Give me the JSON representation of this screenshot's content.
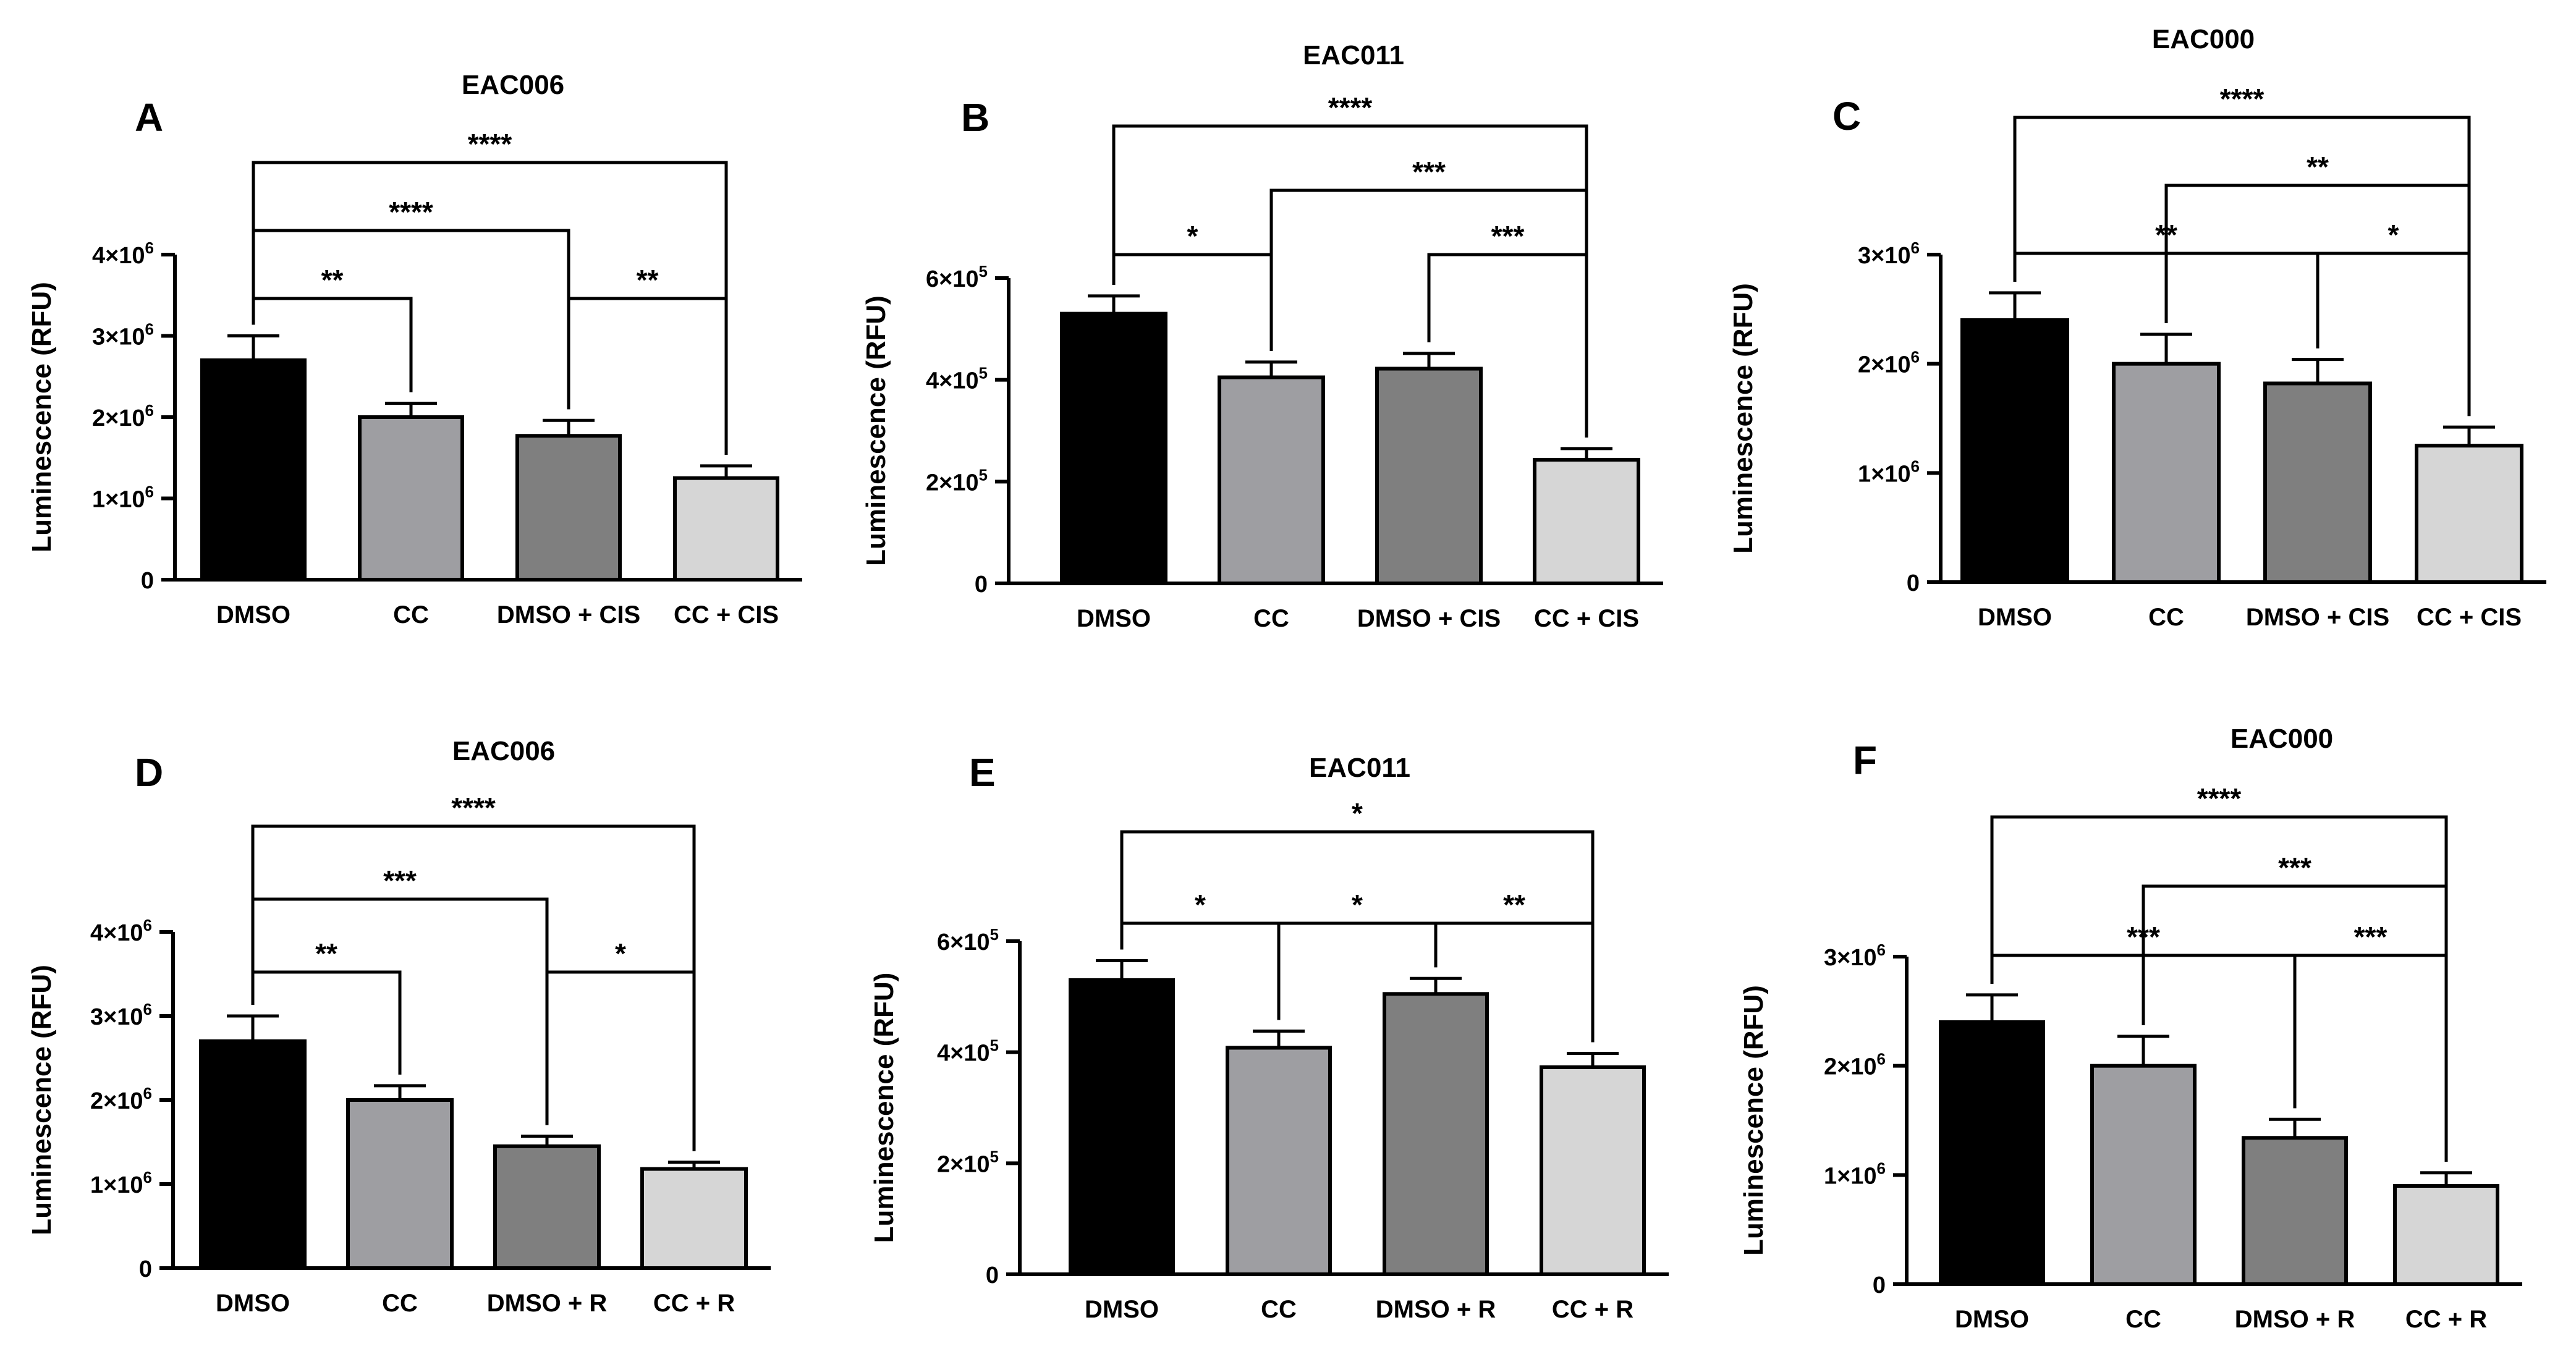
{
  "figure_panels": [
    "A",
    "B",
    "C",
    "D",
    "E",
    "F"
  ],
  "chart_data": [
    {
      "panel": "A",
      "type": "bar",
      "title": "EAC006",
      "xlabel": "",
      "ylabel": "Luminescence (RFU)",
      "categories": [
        "DMSO",
        "CC",
        "DMSO + CIS",
        "CC + CIS"
      ],
      "values": [
        2700000,
        2000000,
        1770000,
        1250000
      ],
      "errors": [
        300000,
        170000,
        190000,
        150000
      ],
      "colors": [
        "#000000",
        "#9e9ea2",
        "#7f7f7f",
        "#d6d6d6"
      ],
      "ylim": [
        0,
        4000000
      ],
      "yticks": [
        {
          "v": 0,
          "base": "0",
          "exp": ""
        },
        {
          "v": 1000000,
          "base": "1×10",
          "exp": "6"
        },
        {
          "v": 2000000,
          "base": "2×10",
          "exp": "6"
        },
        {
          "v": 3000000,
          "base": "3×10",
          "exp": "6"
        },
        {
          "v": 4000000,
          "base": "4×10",
          "exp": "6"
        }
      ],
      "comparisons": [
        {
          "from": 0,
          "to": 1,
          "stars": "**",
          "level": 0,
          "drop_from": false,
          "drop_to": true
        },
        {
          "from": 2,
          "to": 3,
          "stars": "**",
          "level": 0,
          "drop_from": true,
          "drop_to": true
        },
        {
          "from": 0,
          "to": 2,
          "stars": "****",
          "level": 1,
          "drop_from": false,
          "drop_to": true
        },
        {
          "from": 0,
          "to": 3,
          "stars": "****",
          "level": 2,
          "drop_from": false,
          "drop_to": true
        }
      ]
    },
    {
      "panel": "B",
      "type": "bar",
      "title": "EAC011",
      "xlabel": "",
      "ylabel": "Luminescence (RFU)",
      "categories": [
        "DMSO",
        "CC",
        "DMSO + CIS",
        "CC + CIS"
      ],
      "values": [
        530000,
        405000,
        422000,
        243000
      ],
      "errors": [
        35000,
        30000,
        30000,
        22000
      ],
      "colors": [
        "#000000",
        "#9e9ea2",
        "#7f7f7f",
        "#d6d6d6"
      ],
      "ylim": [
        0,
        600000
      ],
      "yticks": [
        {
          "v": 0,
          "base": "0",
          "exp": ""
        },
        {
          "v": 200000,
          "base": "2×10",
          "exp": "5"
        },
        {
          "v": 400000,
          "base": "4×10",
          "exp": "5"
        },
        {
          "v": 600000,
          "base": "6×10",
          "exp": "5"
        }
      ],
      "comparisons": [
        {
          "from": 0,
          "to": 1,
          "stars": "*",
          "level": 0,
          "drop_from": false,
          "drop_to": true
        },
        {
          "from": 2,
          "to": 3,
          "stars": "***",
          "level": 0,
          "drop_from": true,
          "drop_to": true
        },
        {
          "from": 1,
          "to": 3,
          "stars": "***",
          "level": 1,
          "drop_from": true,
          "drop_to": true
        },
        {
          "from": 0,
          "to": 3,
          "stars": "****",
          "level": 2,
          "drop_from": false,
          "drop_to": true
        }
      ]
    },
    {
      "panel": "C",
      "type": "bar",
      "title": "EAC000",
      "xlabel": "",
      "ylabel": "Luminescence (RFU)",
      "categories": [
        "DMSO",
        "CC",
        "DMSO + CIS",
        "CC + CIS"
      ],
      "values": [
        2400000,
        2000000,
        1820000,
        1250000
      ],
      "errors": [
        250000,
        270000,
        220000,
        170000
      ],
      "colors": [
        "#000000",
        "#9e9ea2",
        "#7f7f7f",
        "#d6d6d6"
      ],
      "ylim": [
        0,
        3000000
      ],
      "yticks": [
        {
          "v": 0,
          "base": "0",
          "exp": ""
        },
        {
          "v": 1000000,
          "base": "1×10",
          "exp": "6"
        },
        {
          "v": 2000000,
          "base": "2×10",
          "exp": "6"
        },
        {
          "v": 3000000,
          "base": "3×10",
          "exp": "6"
        }
      ],
      "comparisons": [
        {
          "from": 0,
          "to": 2,
          "stars": "**",
          "level": 0,
          "drop_from": false,
          "drop_to": true
        },
        {
          "from": 2,
          "to": 3,
          "stars": "*",
          "level": 0,
          "drop_from": true,
          "drop_to": true
        },
        {
          "from": 1,
          "to": 3,
          "stars": "**",
          "level": 1,
          "drop_from": true,
          "drop_to": true
        },
        {
          "from": 0,
          "to": 3,
          "stars": "****",
          "level": 2,
          "drop_from": false,
          "drop_to": true
        }
      ]
    },
    {
      "panel": "D",
      "type": "bar",
      "title": "EAC006",
      "xlabel": "",
      "ylabel": "Luminescence (RFU)",
      "categories": [
        "DMSO",
        "CC",
        "DMSO + R",
        "CC + R"
      ],
      "values": [
        2700000,
        2000000,
        1450000,
        1180000
      ],
      "errors": [
        300000,
        170000,
        120000,
        80000
      ],
      "colors": [
        "#000000",
        "#9e9ea2",
        "#7f7f7f",
        "#d6d6d6"
      ],
      "ylim": [
        0,
        4000000
      ],
      "yticks": [
        {
          "v": 0,
          "base": "0",
          "exp": ""
        },
        {
          "v": 1000000,
          "base": "1×10",
          "exp": "6"
        },
        {
          "v": 2000000,
          "base": "2×10",
          "exp": "6"
        },
        {
          "v": 3000000,
          "base": "3×10",
          "exp": "6"
        },
        {
          "v": 4000000,
          "base": "4×10",
          "exp": "6"
        }
      ],
      "comparisons": [
        {
          "from": 0,
          "to": 1,
          "stars": "**",
          "level": 0,
          "drop_from": false,
          "drop_to": true
        },
        {
          "from": 2,
          "to": 3,
          "stars": "*",
          "level": 0,
          "drop_from": true,
          "drop_to": true
        },
        {
          "from": 0,
          "to": 2,
          "stars": "***",
          "level": 1,
          "drop_from": false,
          "drop_to": true
        },
        {
          "from": 0,
          "to": 3,
          "stars": "****",
          "level": 2,
          "drop_from": false,
          "drop_to": true
        }
      ]
    },
    {
      "panel": "E",
      "type": "bar",
      "title": "EAC011",
      "xlabel": "",
      "ylabel": "Luminescence (RFU)",
      "categories": [
        "DMSO",
        "CC",
        "DMSO + R",
        "CC + R"
      ],
      "values": [
        530000,
        408000,
        505000,
        373000
      ],
      "errors": [
        35000,
        30000,
        28000,
        25000
      ],
      "colors": [
        "#000000",
        "#9e9ea2",
        "#7f7f7f",
        "#d6d6d6"
      ],
      "ylim": [
        0,
        600000
      ],
      "yticks": [
        {
          "v": 0,
          "base": "0",
          "exp": ""
        },
        {
          "v": 200000,
          "base": "2×10",
          "exp": "5"
        },
        {
          "v": 400000,
          "base": "4×10",
          "exp": "5"
        },
        {
          "v": 600000,
          "base": "6×10",
          "exp": "5"
        }
      ],
      "comparisons": [
        {
          "from": 0,
          "to": 1,
          "stars": "*",
          "level": 0,
          "drop_from": false,
          "drop_to": true
        },
        {
          "from": 1,
          "to": 2,
          "stars": "*",
          "level": 0,
          "drop_from": true,
          "drop_to": true
        },
        {
          "from": 2,
          "to": 3,
          "stars": "**",
          "level": 0,
          "drop_from": true,
          "drop_to": true
        },
        {
          "from": 0,
          "to": 3,
          "stars": "*",
          "level": 1,
          "drop_from": false,
          "drop_to": true
        }
      ]
    },
    {
      "panel": "F",
      "type": "bar",
      "title": "EAC000",
      "xlabel": "",
      "ylabel": "Luminescence (RFU)",
      "categories": [
        "DMSO",
        "CC",
        "DMSO + R",
        "CC + R"
      ],
      "values": [
        2400000,
        2000000,
        1340000,
        900000
      ],
      "errors": [
        250000,
        270000,
        170000,
        120000
      ],
      "colors": [
        "#000000",
        "#9e9ea2",
        "#7f7f7f",
        "#d6d6d6"
      ],
      "ylim": [
        0,
        3000000
      ],
      "yticks": [
        {
          "v": 0,
          "base": "0",
          "exp": ""
        },
        {
          "v": 1000000,
          "base": "1×10",
          "exp": "6"
        },
        {
          "v": 2000000,
          "base": "2×10",
          "exp": "6"
        },
        {
          "v": 3000000,
          "base": "3×10",
          "exp": "6"
        }
      ],
      "comparisons": [
        {
          "from": 0,
          "to": 2,
          "stars": "***",
          "level": 0,
          "drop_from": false,
          "drop_to": true
        },
        {
          "from": 2,
          "to": 3,
          "stars": "***",
          "level": 0,
          "drop_from": true,
          "drop_to": true
        },
        {
          "from": 1,
          "to": 3,
          "stars": "***",
          "level": 1,
          "drop_from": true,
          "drop_to": true
        },
        {
          "from": 0,
          "to": 3,
          "stars": "****",
          "level": 2,
          "drop_from": false,
          "drop_to": true
        }
      ]
    }
  ]
}
